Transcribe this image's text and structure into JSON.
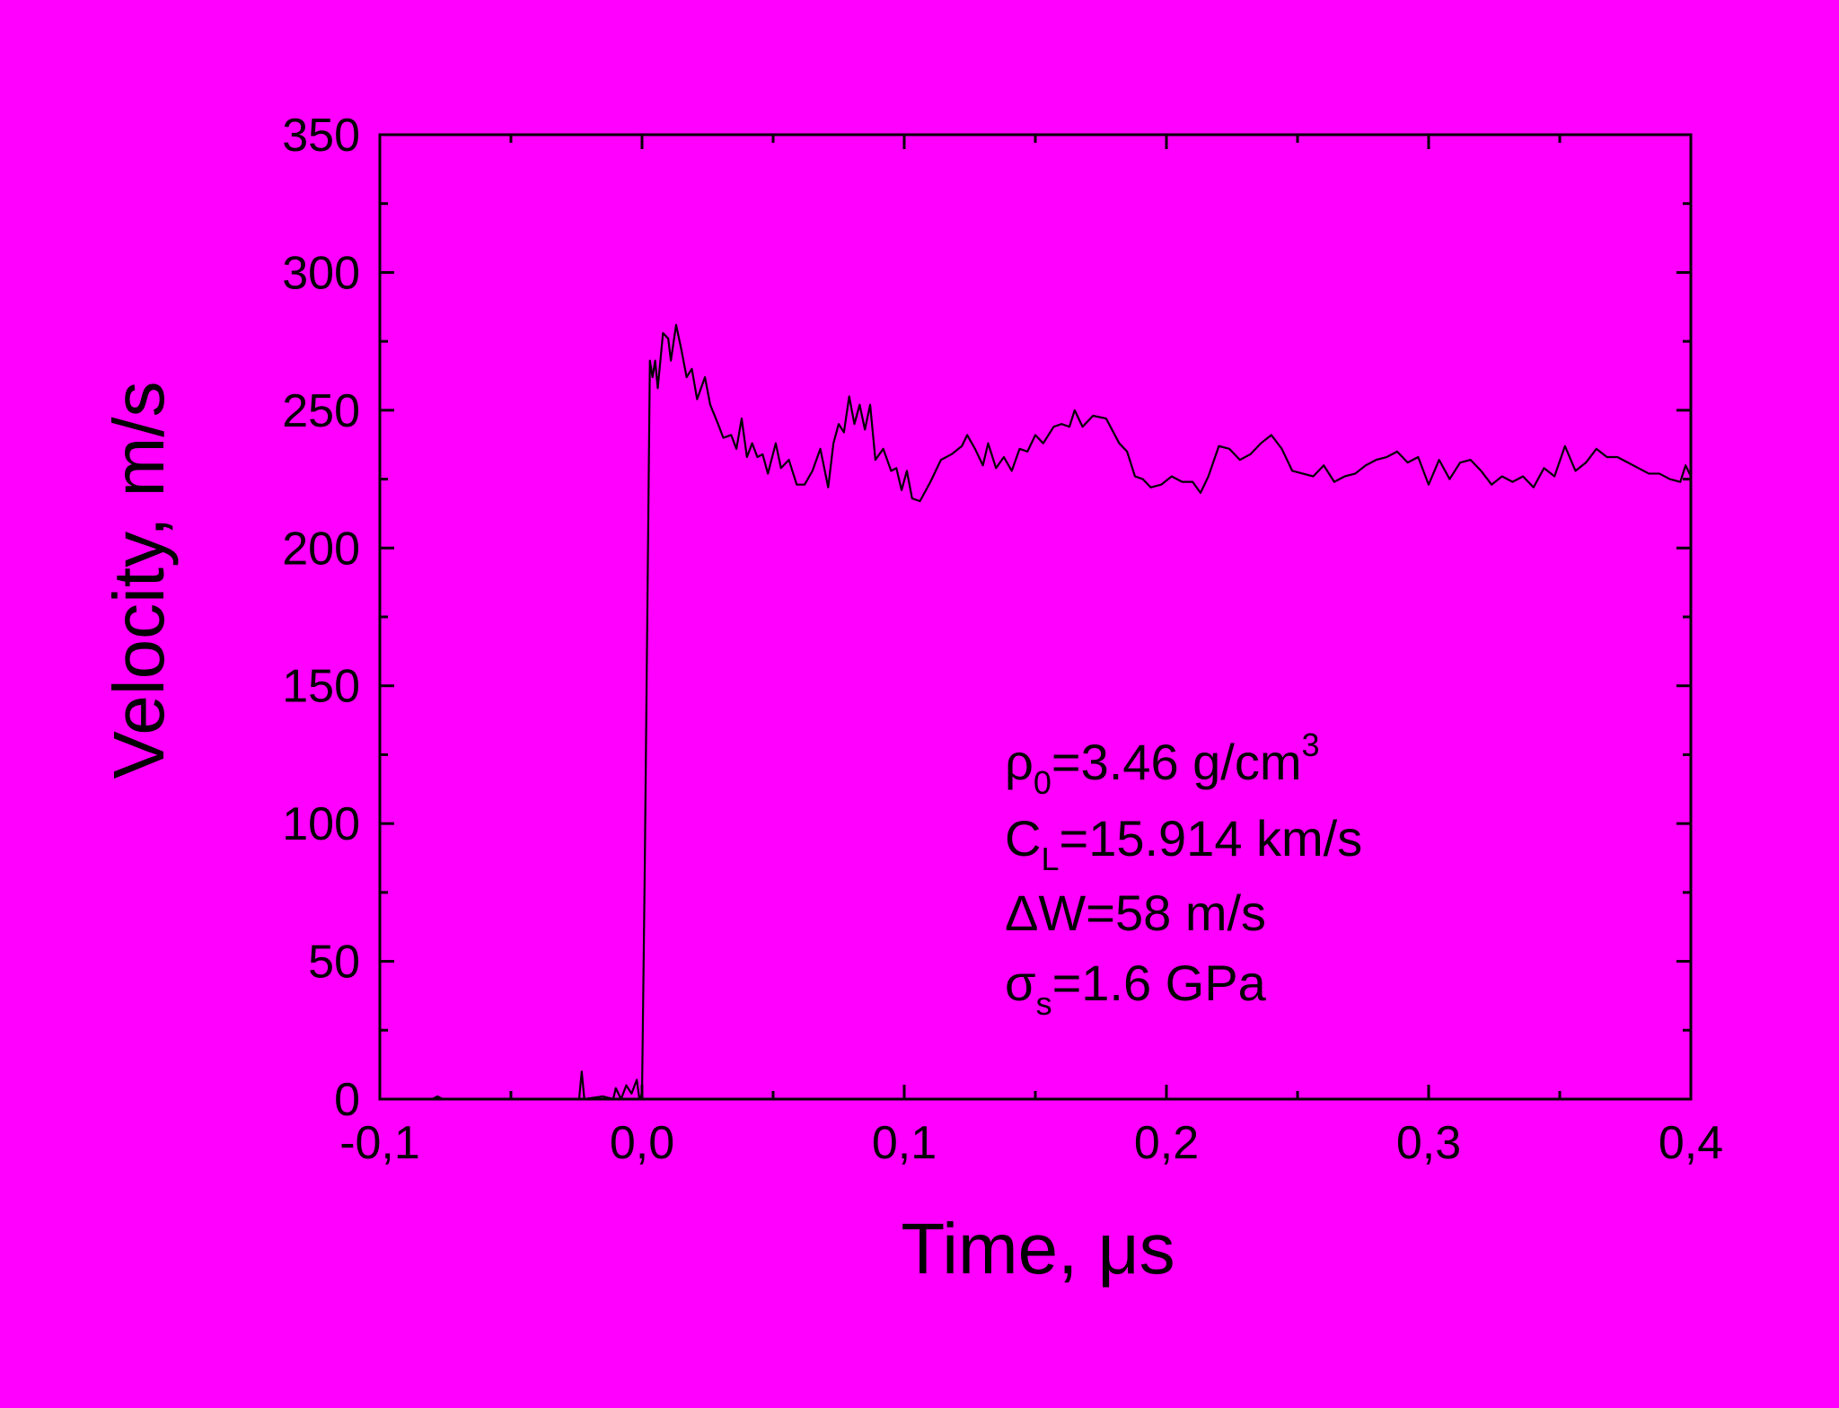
{
  "chart_data": {
    "type": "line",
    "x_label": "Time, μs",
    "y_label": "Velocity, m/s",
    "background": "#ff00ff",
    "color": "#000000",
    "xlim": [
      -0.1,
      0.4
    ],
    "ylim": [
      0,
      350
    ],
    "xticks": [
      {
        "value": -0.1,
        "label": "-0,1"
      },
      {
        "value": 0.0,
        "label": "0,0"
      },
      {
        "value": 0.1,
        "label": "0,1"
      },
      {
        "value": 0.2,
        "label": "0,2"
      },
      {
        "value": 0.3,
        "label": "0,3"
      },
      {
        "value": 0.4,
        "label": "0,4"
      }
    ],
    "yticks": [
      0,
      50,
      100,
      150,
      200,
      250,
      300,
      350
    ],
    "x_minor_ticks": [
      -0.05,
      0.05,
      0.15,
      0.25,
      0.35
    ],
    "y_minor_ticks": [
      25,
      75,
      125,
      175,
      225,
      275,
      325
    ],
    "x": [
      -0.1,
      -0.08,
      -0.078,
      -0.076,
      -0.024,
      -0.023,
      -0.022,
      -0.015,
      -0.011,
      -0.01,
      -0.008,
      -0.006,
      -0.004,
      -0.002,
      -0.001,
      0.0,
      0.001,
      0.003,
      0.004,
      0.005,
      0.006,
      0.008,
      0.01,
      0.011,
      0.013,
      0.015,
      0.017,
      0.019,
      0.021,
      0.024,
      0.026,
      0.029,
      0.031,
      0.034,
      0.036,
      0.038,
      0.04,
      0.042,
      0.044,
      0.046,
      0.048,
      0.051,
      0.053,
      0.056,
      0.059,
      0.062,
      0.065,
      0.068,
      0.071,
      0.073,
      0.075,
      0.077,
      0.079,
      0.081,
      0.083,
      0.085,
      0.087,
      0.089,
      0.092,
      0.095,
      0.097,
      0.099,
      0.101,
      0.103,
      0.106,
      0.11,
      0.114,
      0.118,
      0.122,
      0.124,
      0.127,
      0.13,
      0.132,
      0.135,
      0.138,
      0.141,
      0.144,
      0.147,
      0.15,
      0.153,
      0.157,
      0.16,
      0.163,
      0.165,
      0.168,
      0.172,
      0.177,
      0.182,
      0.185,
      0.188,
      0.191,
      0.194,
      0.198,
      0.202,
      0.206,
      0.21,
      0.213,
      0.216,
      0.22,
      0.224,
      0.228,
      0.232,
      0.236,
      0.24,
      0.244,
      0.248,
      0.252,
      0.256,
      0.26,
      0.264,
      0.268,
      0.272,
      0.276,
      0.28,
      0.284,
      0.288,
      0.292,
      0.296,
      0.3,
      0.304,
      0.308,
      0.312,
      0.316,
      0.32,
      0.324,
      0.328,
      0.332,
      0.336,
      0.34,
      0.344,
      0.348,
      0.352,
      0.356,
      0.36,
      0.364,
      0.368,
      0.372,
      0.376,
      0.38,
      0.384,
      0.388,
      0.392,
      0.396,
      0.398,
      0.4
    ],
    "values": [
      0,
      0,
      1,
      0,
      0,
      10,
      0,
      1,
      0,
      4,
      0,
      5,
      2,
      7,
      0,
      2,
      80,
      268,
      262,
      268,
      258,
      278,
      276,
      268,
      281,
      272,
      262,
      265,
      254,
      262,
      252,
      245,
      240,
      241,
      236,
      247,
      233,
      238,
      233,
      234,
      227,
      238,
      229,
      232,
      223,
      223,
      228,
      236,
      222,
      238,
      245,
      242,
      255,
      245,
      252,
      243,
      252,
      232,
      236,
      228,
      229,
      221,
      228,
      218,
      217,
      224,
      232,
      234,
      237,
      241,
      236,
      230,
      238,
      229,
      233,
      228,
      236,
      235,
      241,
      238,
      244,
      245,
      244,
      250,
      244,
      248,
      247,
      238,
      235,
      226,
      225,
      222,
      223,
      226,
      224,
      224,
      220,
      226,
      237,
      236,
      232,
      234,
      238,
      241,
      236,
      228,
      227,
      226,
      230,
      224,
      226,
      227,
      230,
      232,
      233,
      235,
      231,
      233,
      223,
      232,
      225,
      231,
      232,
      228,
      223,
      226,
      224,
      226,
      222,
      229,
      226,
      237,
      228,
      231,
      236,
      233,
      233,
      231,
      229,
      227,
      227,
      225,
      224,
      230,
      226
    ],
    "annotations": [
      [
        {
          "text": "ρ",
          "pos": "base"
        },
        {
          "text": "0",
          "pos": "sub"
        },
        {
          "text": "=3.46 g/cm",
          "pos": "base"
        },
        {
          "text": "3",
          "pos": "sup"
        }
      ],
      [
        {
          "text": "C",
          "pos": "base"
        },
        {
          "text": "L",
          "pos": "sub"
        },
        {
          "text": "=15.914 km/s",
          "pos": "base"
        }
      ],
      [
        {
          "text": "ΔW=58 m/s",
          "pos": "base"
        }
      ],
      [
        {
          "text": "σ",
          "pos": "base"
        },
        {
          "text": "s",
          "pos": "sub"
        },
        {
          "text": "=1.6 GPa",
          "pos": "base"
        }
      ]
    ]
  }
}
